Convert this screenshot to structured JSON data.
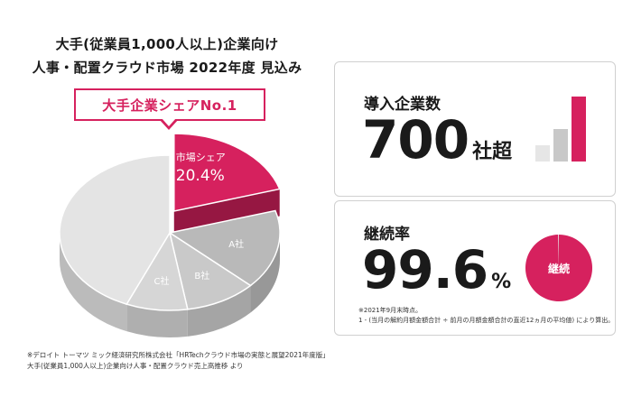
{
  "title": {
    "line1": "大手(従業員1,000人以上)企業向け",
    "line2": "人事・配置クラウド市場 2022年度 見込み"
  },
  "badge": "大手企業シェアNo.1",
  "chart_data": {
    "type": "pie",
    "title": "大手(従業員1,000人以上)企業向け 人事・配置クラウド市場 2022年度 見込み",
    "slices": [
      {
        "label": "市場シェア",
        "value": 20.4,
        "value_label": "20.4%",
        "color": "#d6215e"
      },
      {
        "label": "A社",
        "value": 16.5,
        "color": "#b9b9b9"
      },
      {
        "label": "B社",
        "value": 10.5,
        "color": "#c9c9c9"
      },
      {
        "label": "C社",
        "value": 9.0,
        "color": "#d6d6d6"
      },
      {
        "label": "",
        "value": 43.6,
        "color": "#e4e4e4"
      }
    ]
  },
  "source": {
    "line1": "※デロイト トーマツ ミック経済研究所株式会社「HRTechクラウド市場の実態と展望2021年度版」",
    "line2": "大手(従業員1,000人以上)企業向け人事・配置クラウド売上高推移 より"
  },
  "companies": {
    "label": "導入企業数",
    "value": "700",
    "unit": "社超",
    "bars": [
      {
        "level": 1,
        "color": "#e6e6e6"
      },
      {
        "level": 2,
        "color": "#c8c8c8"
      },
      {
        "level": 4,
        "color": "#d6215e"
      }
    ]
  },
  "retention": {
    "label": "継続率",
    "value": "99.6",
    "unit": "%",
    "donut_label": "継続",
    "donut_percent": 99.6,
    "notes": [
      "※2021年9月末時点。",
      "1 - (当月の解約月額金額合計 ÷ 前月の月額金額合計の直近12ヵ月の平均値) により算出。"
    ]
  },
  "colors": {
    "accent": "#d6215e",
    "accent_dark": "#a8164a",
    "text": "#1a1a1a"
  }
}
